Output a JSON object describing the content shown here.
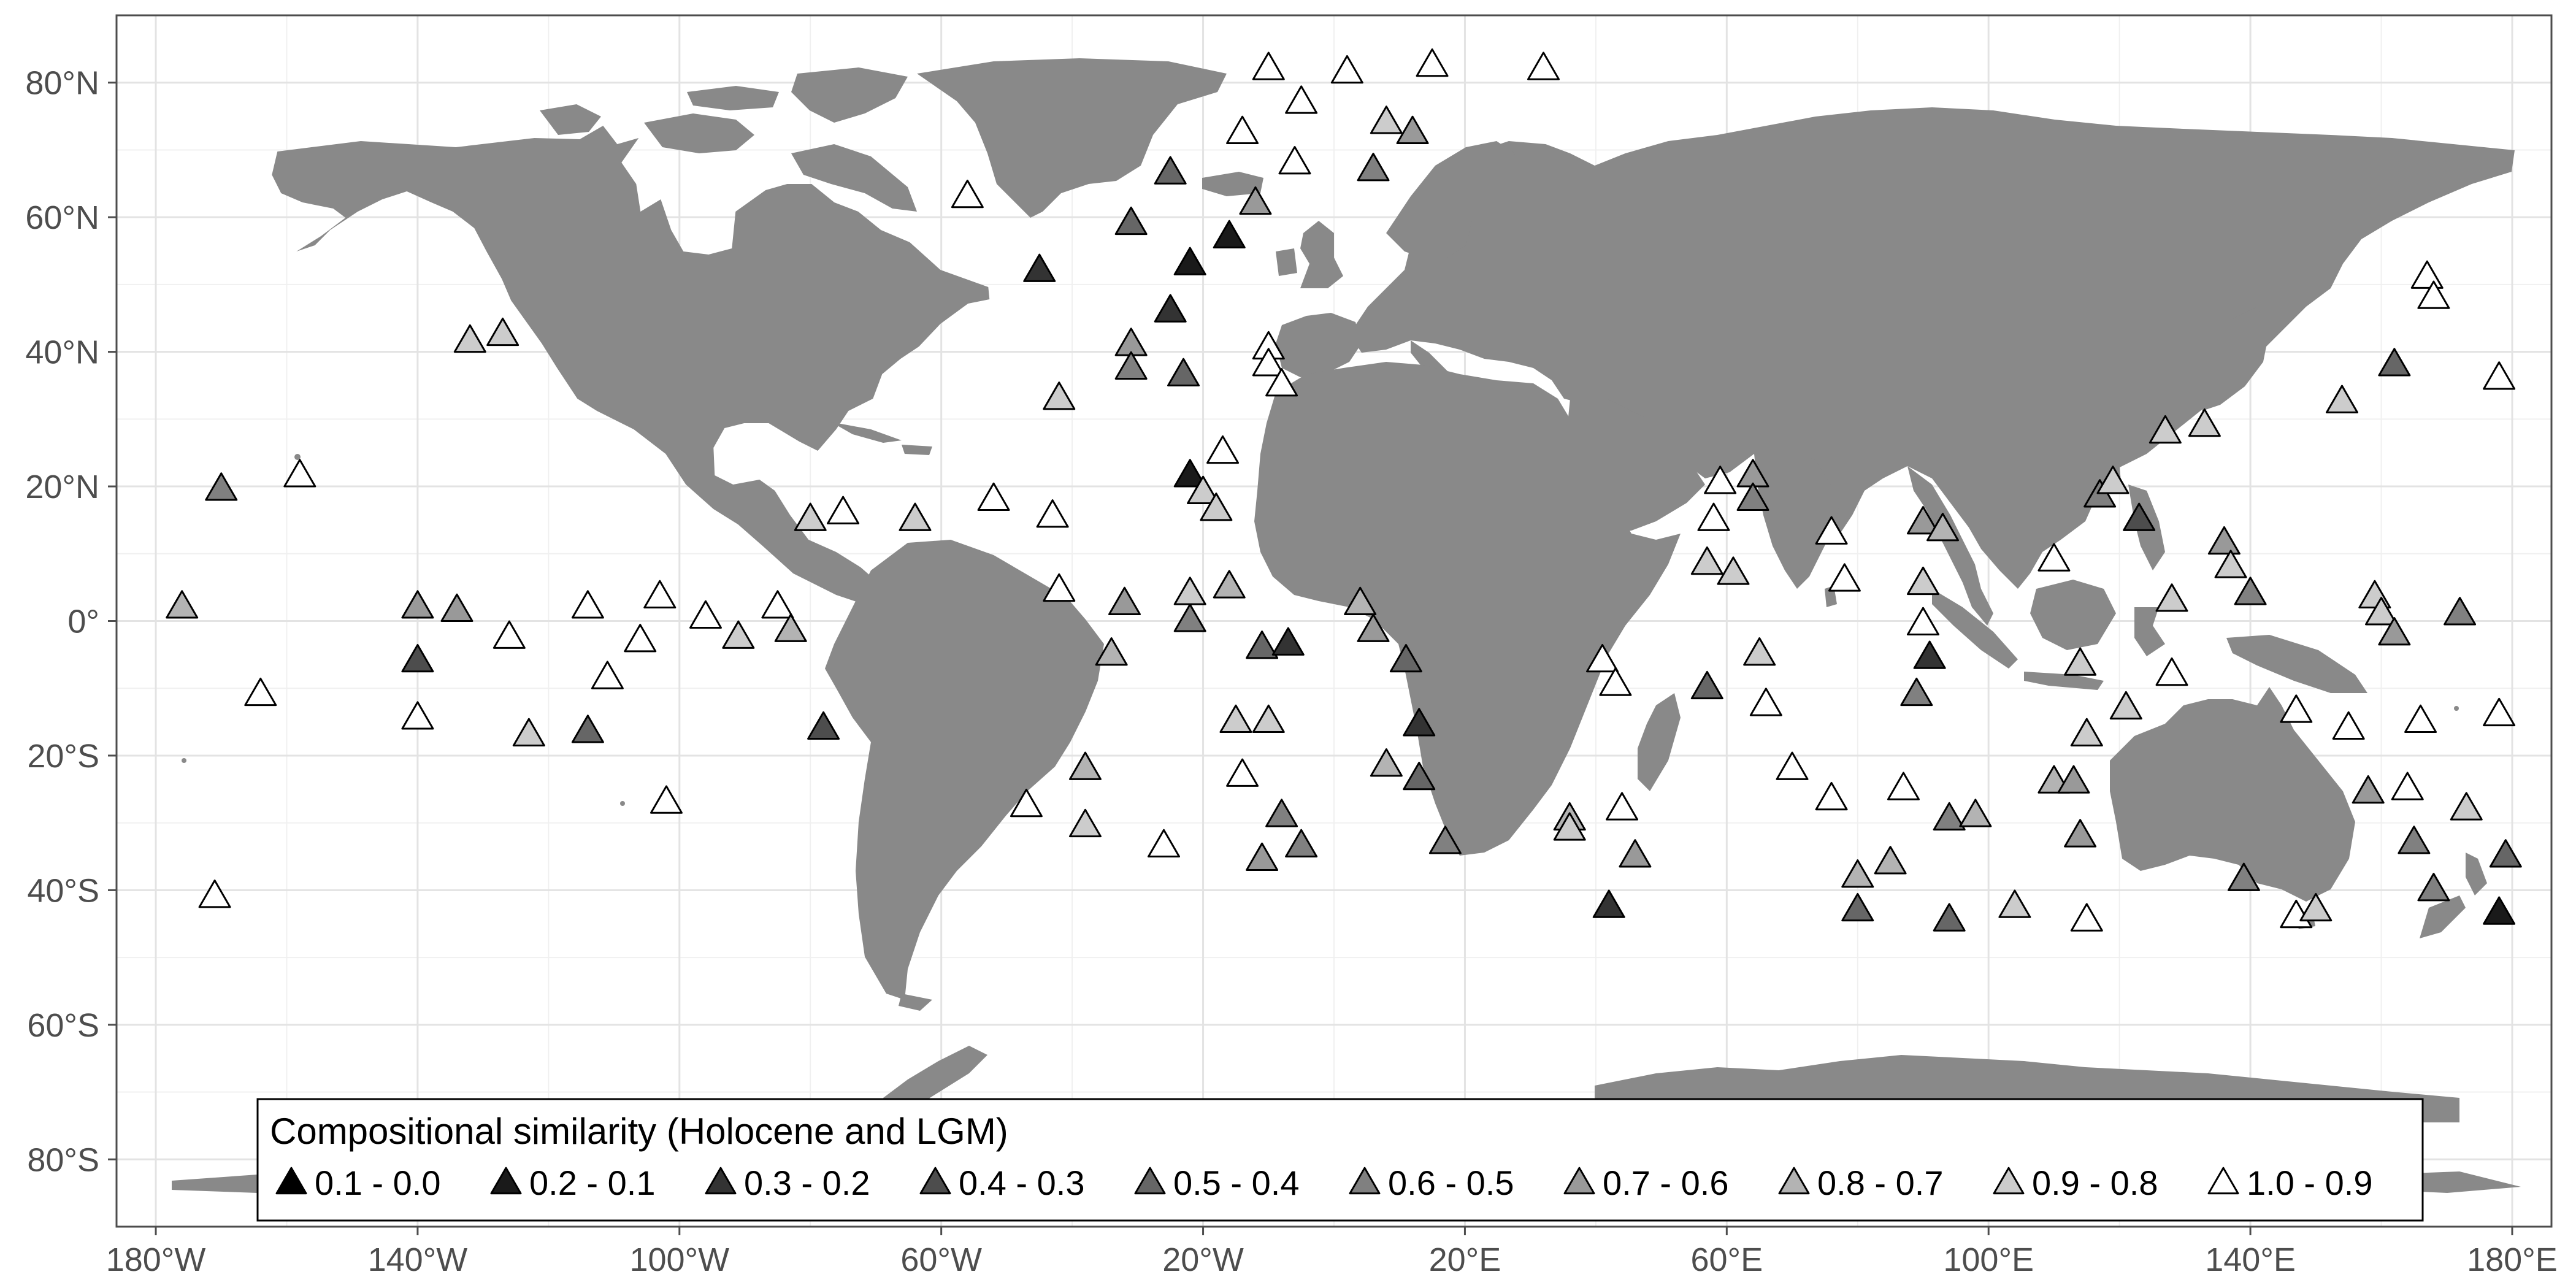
{
  "map": {
    "projection": "equirectangular",
    "lon_range": [
      -186,
      186
    ],
    "lat_range": [
      -90,
      90
    ],
    "colors": {
      "background": "#ffffff",
      "land": "#898989",
      "grid_major": "#e3e3e3",
      "grid_minor": "#f0f0f0",
      "frame": "#4d4d4d",
      "tick_text": "#4d4d4d",
      "marker_stroke": "#000000"
    },
    "x_ticks": [
      {
        "value": -180,
        "label": "180°W"
      },
      {
        "value": -140,
        "label": "140°W"
      },
      {
        "value": -100,
        "label": "100°W"
      },
      {
        "value": -60,
        "label": "60°W"
      },
      {
        "value": -20,
        "label": "20°W"
      },
      {
        "value": 20,
        "label": "20°E"
      },
      {
        "value": 60,
        "label": "60°E"
      },
      {
        "value": 100,
        "label": "100°E"
      },
      {
        "value": 140,
        "label": "140°E"
      },
      {
        "value": 180,
        "label": "180°E"
      }
    ],
    "y_ticks": [
      {
        "value": 80,
        "label": "80°N"
      },
      {
        "value": 60,
        "label": "60°N"
      },
      {
        "value": 40,
        "label": "40°N"
      },
      {
        "value": 20,
        "label": "20°N"
      },
      {
        "value": 0,
        "label": "0°"
      },
      {
        "value": -20,
        "label": "20°S"
      },
      {
        "value": -40,
        "label": "40°S"
      },
      {
        "value": -60,
        "label": "60°S"
      },
      {
        "value": -80,
        "label": "80°S"
      }
    ],
    "legend": {
      "title": "Compositional similarity (Holocene and LGM)",
      "placement": "bottom-center",
      "classes": [
        {
          "label": "0.1 - 0.0",
          "color": "#000000"
        },
        {
          "label": "0.2 - 0.1",
          "color": "#1a1a1a"
        },
        {
          "label": "0.3 - 0.2",
          "color": "#333333"
        },
        {
          "label": "0.4 - 0.3",
          "color": "#4d4d4d"
        },
        {
          "label": "0.5 - 0.4",
          "color": "#666666"
        },
        {
          "label": "0.6 - 0.5",
          "color": "#808080"
        },
        {
          "label": "0.7 - 0.6",
          "color": "#999999"
        },
        {
          "label": "0.8 - 0.7",
          "color": "#b3b3b3"
        },
        {
          "label": "0.9 - 0.8",
          "color": "#cccccc"
        },
        {
          "label": "1.0 - 0.9",
          "color": "#ffffff"
        }
      ]
    },
    "sites": [
      {
        "lon": -176,
        "lat": 2,
        "c": 7
      },
      {
        "lon": -170,
        "lat": 19.5,
        "c": 5
      },
      {
        "lon": -158,
        "lat": 21.5,
        "c": 9
      },
      {
        "lon": -171,
        "lat": -41,
        "c": 9
      },
      {
        "lon": -164,
        "lat": -11,
        "c": 9
      },
      {
        "lon": -140,
        "lat": 2,
        "c": 6
      },
      {
        "lon": -140,
        "lat": -6,
        "c": 3
      },
      {
        "lon": -140,
        "lat": -14.5,
        "c": 9
      },
      {
        "lon": -134,
        "lat": 1.5,
        "c": 6
      },
      {
        "lon": -132,
        "lat": 41.5,
        "c": 8
      },
      {
        "lon": -127,
        "lat": 42.5,
        "c": 8
      },
      {
        "lon": -126,
        "lat": -2.5,
        "c": 9
      },
      {
        "lon": -123,
        "lat": -17,
        "c": 8
      },
      {
        "lon": -114,
        "lat": 2,
        "c": 9
      },
      {
        "lon": -114,
        "lat": -16.5,
        "c": 4
      },
      {
        "lon": -111,
        "lat": -8.5,
        "c": 9
      },
      {
        "lon": -106,
        "lat": -3,
        "c": 9
      },
      {
        "lon": -103,
        "lat": 3.5,
        "c": 9
      },
      {
        "lon": -102,
        "lat": -27,
        "c": 9
      },
      {
        "lon": -96,
        "lat": 0.5,
        "c": 9
      },
      {
        "lon": -91,
        "lat": -2.5,
        "c": 8
      },
      {
        "lon": -85,
        "lat": 2,
        "c": 9
      },
      {
        "lon": -83,
        "lat": -1.5,
        "c": 7
      },
      {
        "lon": -80,
        "lat": 15,
        "c": 8
      },
      {
        "lon": -78,
        "lat": -16,
        "c": 3
      },
      {
        "lon": -75,
        "lat": 16,
        "c": 9
      },
      {
        "lon": -64,
        "lat": 15,
        "c": 8
      },
      {
        "lon": -56,
        "lat": 63,
        "c": 9
      },
      {
        "lon": -52,
        "lat": 18,
        "c": 9
      },
      {
        "lon": -47,
        "lat": -27.5,
        "c": 9
      },
      {
        "lon": -45,
        "lat": 52,
        "c": 2
      },
      {
        "lon": -43,
        "lat": 15.5,
        "c": 9
      },
      {
        "lon": -42,
        "lat": 4.5,
        "c": 9
      },
      {
        "lon": -42,
        "lat": 33,
        "c": 8
      },
      {
        "lon": -38,
        "lat": -22,
        "c": 7
      },
      {
        "lon": -38,
        "lat": -30.5,
        "c": 8
      },
      {
        "lon": -34,
        "lat": -5,
        "c": 7
      },
      {
        "lon": -32,
        "lat": 2.5,
        "c": 6
      },
      {
        "lon": -31,
        "lat": 59,
        "c": 4
      },
      {
        "lon": -31,
        "lat": 41,
        "c": 6
      },
      {
        "lon": -31,
        "lat": 37.5,
        "c": 5
      },
      {
        "lon": -26,
        "lat": -33.5,
        "c": 9
      },
      {
        "lon": -25,
        "lat": 66.5,
        "c": 4
      },
      {
        "lon": -25,
        "lat": 46,
        "c": 2
      },
      {
        "lon": -23,
        "lat": 36.5,
        "c": 4
      },
      {
        "lon": -22,
        "lat": 21.5,
        "c": 1
      },
      {
        "lon": -22,
        "lat": 0,
        "c": 5
      },
      {
        "lon": -22,
        "lat": 4,
        "c": 8
      },
      {
        "lon": -22,
        "lat": 53,
        "c": 1
      },
      {
        "lon": -20,
        "lat": 19,
        "c": 8
      },
      {
        "lon": -18,
        "lat": 16.5,
        "c": 8
      },
      {
        "lon": -16,
        "lat": 57,
        "c": 1
      },
      {
        "lon": -17,
        "lat": 25,
        "c": 9
      },
      {
        "lon": -16,
        "lat": 5,
        "c": 7
      },
      {
        "lon": -15,
        "lat": -15,
        "c": 8
      },
      {
        "lon": -14,
        "lat": -23,
        "c": 9
      },
      {
        "lon": -14,
        "lat": 72.5,
        "c": 9
      },
      {
        "lon": -12,
        "lat": 62,
        "c": 6
      },
      {
        "lon": -11,
        "lat": -4,
        "c": 4
      },
      {
        "lon": -11,
        "lat": -35.5,
        "c": 6
      },
      {
        "lon": -10,
        "lat": 40.5,
        "c": 9
      },
      {
        "lon": -10,
        "lat": 38,
        "c": 9
      },
      {
        "lon": -10,
        "lat": -15,
        "c": 8
      },
      {
        "lon": -10,
        "lat": 82,
        "c": 9
      },
      {
        "lon": -8,
        "lat": 35,
        "c": 9
      },
      {
        "lon": -8,
        "lat": -29,
        "c": 5
      },
      {
        "lon": -7,
        "lat": -3.5,
        "c": 2
      },
      {
        "lon": -6,
        "lat": 68,
        "c": 9
      },
      {
        "lon": -5,
        "lat": 77,
        "c": 9
      },
      {
        "lon": -5,
        "lat": -33.5,
        "c": 5
      },
      {
        "lon": 2,
        "lat": 81.5,
        "c": 9
      },
      {
        "lon": 4,
        "lat": 2.5,
        "c": 7
      },
      {
        "lon": 6,
        "lat": 67,
        "c": 5
      },
      {
        "lon": 6,
        "lat": -1.5,
        "c": 6
      },
      {
        "lon": 8,
        "lat": 74,
        "c": 8
      },
      {
        "lon": 8,
        "lat": -21.5,
        "c": 7
      },
      {
        "lon": 11,
        "lat": -6,
        "c": 4
      },
      {
        "lon": 12,
        "lat": 72.5,
        "c": 6
      },
      {
        "lon": 13,
        "lat": -15.5,
        "c": 2
      },
      {
        "lon": 13,
        "lat": -23.5,
        "c": 4
      },
      {
        "lon": 15,
        "lat": 82.5,
        "c": 9
      },
      {
        "lon": 17,
        "lat": -33,
        "c": 5
      },
      {
        "lon": 32,
        "lat": 82,
        "c": 9
      },
      {
        "lon": 36,
        "lat": -29.5,
        "c": 7
      },
      {
        "lon": 36,
        "lat": -31,
        "c": 8
      },
      {
        "lon": 41,
        "lat": -6,
        "c": 9
      },
      {
        "lon": 42,
        "lat": -42.5,
        "c": 2
      },
      {
        "lon": 43,
        "lat": -9.5,
        "c": 9
      },
      {
        "lon": 44,
        "lat": -28,
        "c": 9
      },
      {
        "lon": 46,
        "lat": -35,
        "c": 6
      },
      {
        "lon": 57,
        "lat": -10,
        "c": 4
      },
      {
        "lon": 57,
        "lat": 8.5,
        "c": 8
      },
      {
        "lon": 58,
        "lat": 15,
        "c": 9
      },
      {
        "lon": 59,
        "lat": 20.5,
        "c": 9
      },
      {
        "lon": 61,
        "lat": 7,
        "c": 8
      },
      {
        "lon": 64,
        "lat": 21.5,
        "c": 6
      },
      {
        "lon": 64,
        "lat": 18,
        "c": 5
      },
      {
        "lon": 65,
        "lat": -5,
        "c": 8
      },
      {
        "lon": 66,
        "lat": -12.5,
        "c": 9
      },
      {
        "lon": 70,
        "lat": -22,
        "c": 9
      },
      {
        "lon": 76,
        "lat": -26.5,
        "c": 9
      },
      {
        "lon": 76,
        "lat": 13,
        "c": 9
      },
      {
        "lon": 78,
        "lat": 6,
        "c": 9
      },
      {
        "lon": 80,
        "lat": -38,
        "c": 7
      },
      {
        "lon": 80,
        "lat": -43,
        "c": 4
      },
      {
        "lon": 85,
        "lat": -36,
        "c": 7
      },
      {
        "lon": 87,
        "lat": -25,
        "c": 9
      },
      {
        "lon": 89,
        "lat": -11,
        "c": 5
      },
      {
        "lon": 90,
        "lat": 14.5,
        "c": 6
      },
      {
        "lon": 90,
        "lat": 5.5,
        "c": 8
      },
      {
        "lon": 90,
        "lat": -0.5,
        "c": 9
      },
      {
        "lon": 91,
        "lat": -5.5,
        "c": 2
      },
      {
        "lon": 93,
        "lat": 13.5,
        "c": 7
      },
      {
        "lon": 94,
        "lat": -29.5,
        "c": 5
      },
      {
        "lon": 94,
        "lat": -44.5,
        "c": 4
      },
      {
        "lon": 98,
        "lat": -29,
        "c": 7
      },
      {
        "lon": 104,
        "lat": -42.5,
        "c": 8
      },
      {
        "lon": 110,
        "lat": 9,
        "c": 9
      },
      {
        "lon": 110,
        "lat": -24,
        "c": 7
      },
      {
        "lon": 113,
        "lat": -24,
        "c": 6
      },
      {
        "lon": 114,
        "lat": -32,
        "c": 6
      },
      {
        "lon": 114,
        "lat": -6.5,
        "c": 8
      },
      {
        "lon": 115,
        "lat": -17,
        "c": 8
      },
      {
        "lon": 115,
        "lat": -44.5,
        "c": 9
      },
      {
        "lon": 117,
        "lat": 18.5,
        "c": 5
      },
      {
        "lon": 119,
        "lat": 20.5,
        "c": 8
      },
      {
        "lon": 121,
        "lat": -13,
        "c": 8
      },
      {
        "lon": 123,
        "lat": 15,
        "c": 3
      },
      {
        "lon": 127,
        "lat": 28,
        "c": 8
      },
      {
        "lon": 128,
        "lat": 3,
        "c": 8
      },
      {
        "lon": 128,
        "lat": -8,
        "c": 9
      },
      {
        "lon": 133,
        "lat": 29,
        "c": 8
      },
      {
        "lon": 136,
        "lat": 11.5,
        "c": 6
      },
      {
        "lon": 137,
        "lat": 8,
        "c": 8
      },
      {
        "lon": 140,
        "lat": 4,
        "c": 5
      },
      {
        "lon": 139,
        "lat": -38.5,
        "c": 5
      },
      {
        "lon": 147,
        "lat": -44,
        "c": 9
      },
      {
        "lon": 147,
        "lat": -13.5,
        "c": 9
      },
      {
        "lon": 150,
        "lat": -43,
        "c": 8
      },
      {
        "lon": 154,
        "lat": 32.5,
        "c": 8
      },
      {
        "lon": 155,
        "lat": -16,
        "c": 9
      },
      {
        "lon": 158,
        "lat": -25.5,
        "c": 6
      },
      {
        "lon": 159,
        "lat": 3.5,
        "c": 8
      },
      {
        "lon": 160,
        "lat": 1,
        "c": 8
      },
      {
        "lon": 162,
        "lat": -2,
        "c": 6
      },
      {
        "lon": 162,
        "lat": 38,
        "c": 4
      },
      {
        "lon": 164,
        "lat": -25,
        "c": 9
      },
      {
        "lon": 165,
        "lat": -33,
        "c": 5
      },
      {
        "lon": 166,
        "lat": -15,
        "c": 9
      },
      {
        "lon": 167,
        "lat": 51,
        "c": 9
      },
      {
        "lon": 168,
        "lat": 48,
        "c": 9
      },
      {
        "lon": 168,
        "lat": -40,
        "c": 5
      },
      {
        "lon": 172,
        "lat": 1,
        "c": 5
      },
      {
        "lon": 173,
        "lat": -28,
        "c": 8
      },
      {
        "lon": 178,
        "lat": -43.5,
        "c": 1
      },
      {
        "lon": 179,
        "lat": -35,
        "c": 4
      },
      {
        "lon": 178,
        "lat": 36,
        "c": 9
      },
      {
        "lon": 178,
        "lat": -14,
        "c": 9
      }
    ]
  }
}
